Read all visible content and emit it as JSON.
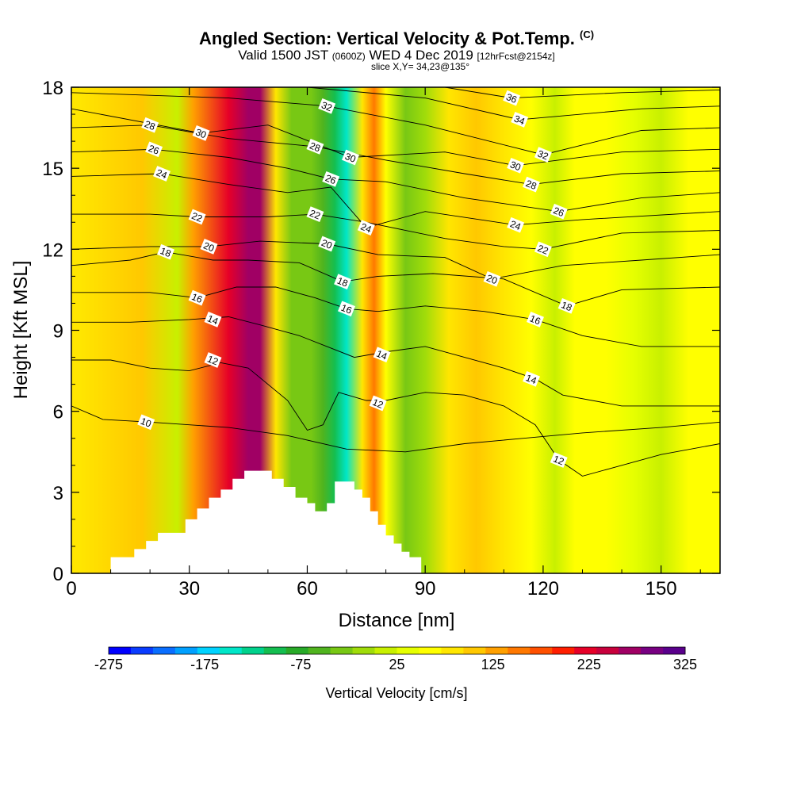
{
  "title": {
    "main": "Angled Section: Vertical Velocity & Pot.Temp.",
    "mark": "(C)",
    "valid_a": "Valid 1500 JST",
    "valid_b": "(0600Z)",
    "valid_c": "WED 4 Dec 2019",
    "valid_d": "[12hrFcst@2154z]",
    "slice": "slice X,Y= 34,23@135°"
  },
  "chart_data": {
    "type": "heatmap",
    "title": "Angled Section: Vertical Velocity & Pot.Temp.",
    "xlabel": "Distance [nm]",
    "ylabel": "Height [Kft MSL]",
    "xlim": [
      0,
      165
    ],
    "ylim": [
      0,
      18
    ],
    "x_ticks": [
      0,
      30,
      60,
      90,
      120,
      150
    ],
    "y_ticks": [
      0,
      3,
      6,
      9,
      12,
      15,
      18
    ],
    "colorbar": {
      "label": "Vertical Velocity [cm/s]",
      "tick_labels": [
        "-275",
        "-175",
        "-75",
        "25",
        "125",
        "225",
        "325"
      ],
      "tick_values": [
        -275,
        -175,
        -75,
        25,
        125,
        225,
        325
      ],
      "colors": [
        "#0000ff",
        "#0a3cff",
        "#0a6eff",
        "#00a0ff",
        "#00d2ff",
        "#00e6c8",
        "#00d28c",
        "#14be50",
        "#28aa28",
        "#50b41e",
        "#78c814",
        "#a0dc0a",
        "#c8f000",
        "#e6ff00",
        "#ffff00",
        "#ffe600",
        "#ffc800",
        "#ffa000",
        "#ff7800",
        "#ff5000",
        "#ff1e00",
        "#e60028",
        "#c8003c",
        "#a00064",
        "#780082",
        "#5a008c"
      ]
    },
    "velocity_columns": [
      {
        "x": 2,
        "w": 90
      },
      {
        "x": 18,
        "w": 100
      },
      {
        "x": 27,
        "w": 10
      },
      {
        "x": 31,
        "w": 130
      },
      {
        "x": 40,
        "w": 230
      },
      {
        "x": 45,
        "w": 260
      },
      {
        "x": 48,
        "w": 270
      },
      {
        "x": 52,
        "w": 80
      },
      {
        "x": 56,
        "w": -30
      },
      {
        "x": 61,
        "w": -40
      },
      {
        "x": 64,
        "w": -60
      },
      {
        "x": 67,
        "w": -110
      },
      {
        "x": 70,
        "w": -150
      },
      {
        "x": 74,
        "w": 80
      },
      {
        "x": 77,
        "w": 150
      },
      {
        "x": 80,
        "w": 60
      },
      {
        "x": 85,
        "w": -40
      },
      {
        "x": 90,
        "w": -20
      },
      {
        "x": 96,
        "w": 80
      },
      {
        "x": 103,
        "w": 100
      },
      {
        "x": 110,
        "w": 80
      },
      {
        "x": 117,
        "w": 60
      },
      {
        "x": 123,
        "w": 10
      },
      {
        "x": 128,
        "w": 70
      },
      {
        "x": 136,
        "w": 50
      },
      {
        "x": 143,
        "w": 40
      },
      {
        "x": 150,
        "w": 20
      },
      {
        "x": 157,
        "w": 50
      },
      {
        "x": 163,
        "w": 70
      }
    ],
    "terrain": [
      [
        10,
        0.6
      ],
      [
        13,
        0.6
      ],
      [
        16,
        0.9
      ],
      [
        19,
        1.2
      ],
      [
        22,
        1.5
      ],
      [
        26,
        1.5
      ],
      [
        29,
        2.0
      ],
      [
        32,
        2.4
      ],
      [
        35,
        2.8
      ],
      [
        38,
        3.1
      ],
      [
        41,
        3.5
      ],
      [
        44,
        3.8
      ],
      [
        48,
        3.8
      ],
      [
        51,
        3.5
      ],
      [
        54,
        3.2
      ],
      [
        57,
        2.8
      ],
      [
        60,
        2.6
      ],
      [
        62,
        2.3
      ],
      [
        65,
        2.6
      ],
      [
        67,
        3.4
      ],
      [
        70,
        3.4
      ],
      [
        72,
        3.1
      ],
      [
        74,
        2.8
      ],
      [
        76,
        2.3
      ],
      [
        78,
        1.8
      ],
      [
        80,
        1.4
      ],
      [
        82,
        1.1
      ],
      [
        84,
        0.8
      ],
      [
        86,
        0.6
      ],
      [
        89,
        0.6
      ]
    ],
    "theta_labels": [
      {
        "text": "10",
        "x": 19,
        "y": 5.6
      },
      {
        "text": "12",
        "x": 36,
        "y": 7.9
      },
      {
        "text": "14",
        "x": 36,
        "y": 9.4
      },
      {
        "text": "16",
        "x": 32,
        "y": 10.2
      },
      {
        "text": "18",
        "x": 24,
        "y": 11.9
      },
      {
        "text": "20",
        "x": 35,
        "y": 12.1
      },
      {
        "text": "22",
        "x": 32,
        "y": 13.2
      },
      {
        "text": "24",
        "x": 23,
        "y": 14.8
      },
      {
        "text": "26",
        "x": 21,
        "y": 15.7
      },
      {
        "text": "28",
        "x": 20,
        "y": 16.6
      },
      {
        "text": "30",
        "x": 33,
        "y": 16.3
      },
      {
        "text": "28",
        "x": 62,
        "y": 15.8
      },
      {
        "text": "30",
        "x": 71,
        "y": 15.4
      },
      {
        "text": "32",
        "x": 65,
        "y": 17.3
      },
      {
        "text": "26",
        "x": 66,
        "y": 14.6
      },
      {
        "text": "22",
        "x": 62,
        "y": 13.3
      },
      {
        "text": "20",
        "x": 65,
        "y": 12.2
      },
      {
        "text": "24",
        "x": 75,
        "y": 12.8
      },
      {
        "text": "18",
        "x": 69,
        "y": 10.8
      },
      {
        "text": "16",
        "x": 70,
        "y": 9.8
      },
      {
        "text": "14",
        "x": 79,
        "y": 8.1
      },
      {
        "text": "12",
        "x": 78,
        "y": 6.3
      },
      {
        "text": "36",
        "x": 112,
        "y": 17.6
      },
      {
        "text": "34",
        "x": 114,
        "y": 16.8
      },
      {
        "text": "32",
        "x": 120,
        "y": 15.5
      },
      {
        "text": "30",
        "x": 113,
        "y": 15.1
      },
      {
        "text": "28",
        "x": 117,
        "y": 14.4
      },
      {
        "text": "26",
        "x": 124,
        "y": 13.4
      },
      {
        "text": "24",
        "x": 113,
        "y": 12.9
      },
      {
        "text": "22",
        "x": 120,
        "y": 12.0
      },
      {
        "text": "20",
        "x": 107,
        "y": 10.9
      },
      {
        "text": "18",
        "x": 126,
        "y": 9.9
      },
      {
        "text": "16",
        "x": 118,
        "y": 9.4
      },
      {
        "text": "14",
        "x": 117,
        "y": 7.2
      },
      {
        "text": "12",
        "x": 124,
        "y": 4.2
      }
    ],
    "theta_levels": [
      {
        "v": 10,
        "pts": [
          [
            0,
            6.2
          ],
          [
            8,
            5.7
          ],
          [
            20,
            5.6
          ],
          [
            40,
            5.4
          ],
          [
            55,
            5.1
          ],
          [
            70,
            4.6
          ],
          [
            85,
            4.5
          ],
          [
            100,
            4.8
          ],
          [
            115,
            5.0
          ],
          [
            130,
            5.2
          ],
          [
            150,
            5.4
          ],
          [
            165,
            5.6
          ]
        ]
      },
      {
        "v": 12,
        "pts": [
          [
            0,
            7.9
          ],
          [
            10,
            7.9
          ],
          [
            20,
            7.6
          ],
          [
            30,
            7.5
          ],
          [
            38,
            7.8
          ],
          [
            45,
            7.6
          ],
          [
            55,
            6.4
          ],
          [
            60,
            5.3
          ],
          [
            64,
            5.5
          ],
          [
            68,
            6.7
          ],
          [
            75,
            6.4
          ],
          [
            80,
            6.4
          ],
          [
            90,
            6.7
          ],
          [
            100,
            6.6
          ],
          [
            110,
            6.2
          ],
          [
            118,
            5.5
          ],
          [
            124,
            4.2
          ],
          [
            130,
            3.6
          ],
          [
            140,
            4.0
          ],
          [
            150,
            4.4
          ],
          [
            165,
            4.8
          ]
        ]
      },
      {
        "v": 14,
        "pts": [
          [
            0,
            9.3
          ],
          [
            15,
            9.3
          ],
          [
            30,
            9.4
          ],
          [
            40,
            9.5
          ],
          [
            48,
            9.2
          ],
          [
            58,
            8.8
          ],
          [
            65,
            8.4
          ],
          [
            72,
            8.0
          ],
          [
            80,
            8.2
          ],
          [
            90,
            8.4
          ],
          [
            100,
            8.0
          ],
          [
            110,
            7.6
          ],
          [
            118,
            7.2
          ],
          [
            125,
            6.6
          ],
          [
            140,
            6.2
          ],
          [
            165,
            6.2
          ]
        ]
      },
      {
        "v": 16,
        "pts": [
          [
            0,
            10.4
          ],
          [
            20,
            10.4
          ],
          [
            32,
            10.2
          ],
          [
            42,
            10.6
          ],
          [
            52,
            10.6
          ],
          [
            62,
            10.2
          ],
          [
            70,
            9.8
          ],
          [
            78,
            9.7
          ],
          [
            90,
            9.9
          ],
          [
            105,
            9.7
          ],
          [
            118,
            9.4
          ],
          [
            130,
            8.8
          ],
          [
            145,
            8.4
          ],
          [
            165,
            8.4
          ]
        ]
      },
      {
        "v": 18,
        "pts": [
          [
            0,
            11.4
          ],
          [
            15,
            11.6
          ],
          [
            24,
            11.9
          ],
          [
            36,
            11.6
          ],
          [
            45,
            11.6
          ],
          [
            58,
            11.5
          ],
          [
            69,
            10.8
          ],
          [
            78,
            11.0
          ],
          [
            92,
            11.1
          ],
          [
            110,
            10.9
          ],
          [
            126,
            9.9
          ],
          [
            140,
            10.5
          ],
          [
            165,
            10.6
          ]
        ]
      },
      {
        "v": 20,
        "pts": [
          [
            0,
            12.0
          ],
          [
            20,
            12.1
          ],
          [
            35,
            12.1
          ],
          [
            48,
            12.3
          ],
          [
            65,
            12.2
          ],
          [
            78,
            11.8
          ],
          [
            95,
            11.7
          ],
          [
            107,
            10.9
          ],
          [
            125,
            11.4
          ],
          [
            145,
            11.6
          ],
          [
            165,
            11.8
          ]
        ]
      },
      {
        "v": 22,
        "pts": [
          [
            0,
            13.3
          ],
          [
            20,
            13.3
          ],
          [
            32,
            13.2
          ],
          [
            50,
            13.2
          ],
          [
            62,
            13.3
          ],
          [
            75,
            13.0
          ],
          [
            95,
            12.4
          ],
          [
            110,
            12.1
          ],
          [
            120,
            12.0
          ],
          [
            140,
            12.6
          ],
          [
            165,
            12.7
          ]
        ]
      },
      {
        "v": 24,
        "pts": [
          [
            0,
            14.7
          ],
          [
            23,
            14.8
          ],
          [
            40,
            14.4
          ],
          [
            55,
            14.1
          ],
          [
            66,
            14.3
          ],
          [
            75,
            12.8
          ],
          [
            90,
            13.4
          ],
          [
            113,
            12.9
          ],
          [
            130,
            13.1
          ],
          [
            165,
            13.4
          ]
        ]
      },
      {
        "v": 26,
        "pts": [
          [
            0,
            15.6
          ],
          [
            21,
            15.7
          ],
          [
            40,
            15.4
          ],
          [
            55,
            15.0
          ],
          [
            66,
            14.6
          ],
          [
            80,
            14.5
          ],
          [
            100,
            13.9
          ],
          [
            124,
            13.4
          ],
          [
            145,
            13.9
          ],
          [
            165,
            14.1
          ]
        ]
      },
      {
        "v": 28,
        "pts": [
          [
            0,
            16.5
          ],
          [
            20,
            16.6
          ],
          [
            40,
            16.1
          ],
          [
            62,
            15.8
          ],
          [
            80,
            15.3
          ],
          [
            100,
            14.8
          ],
          [
            117,
            14.4
          ],
          [
            140,
            14.8
          ],
          [
            165,
            14.9
          ]
        ]
      },
      {
        "v": 30,
        "pts": [
          [
            0,
            17.2
          ],
          [
            33,
            16.3
          ],
          [
            50,
            16.6
          ],
          [
            71,
            15.4
          ],
          [
            95,
            15.6
          ],
          [
            113,
            15.1
          ],
          [
            140,
            15.6
          ],
          [
            165,
            15.7
          ]
        ]
      },
      {
        "v": 32,
        "pts": [
          [
            0,
            17.8
          ],
          [
            40,
            17.6
          ],
          [
            65,
            17.3
          ],
          [
            90,
            16.6
          ],
          [
            120,
            15.5
          ],
          [
            145,
            16.4
          ],
          [
            165,
            16.5
          ]
        ]
      },
      {
        "v": 34,
        "pts": [
          [
            60,
            18.0
          ],
          [
            90,
            17.6
          ],
          [
            114,
            16.8
          ],
          [
            145,
            17.2
          ],
          [
            165,
            17.3
          ]
        ]
      },
      {
        "v": 36,
        "pts": [
          [
            95,
            18.0
          ],
          [
            112,
            17.6
          ],
          [
            140,
            17.8
          ],
          [
            165,
            17.9
          ]
        ]
      }
    ]
  }
}
